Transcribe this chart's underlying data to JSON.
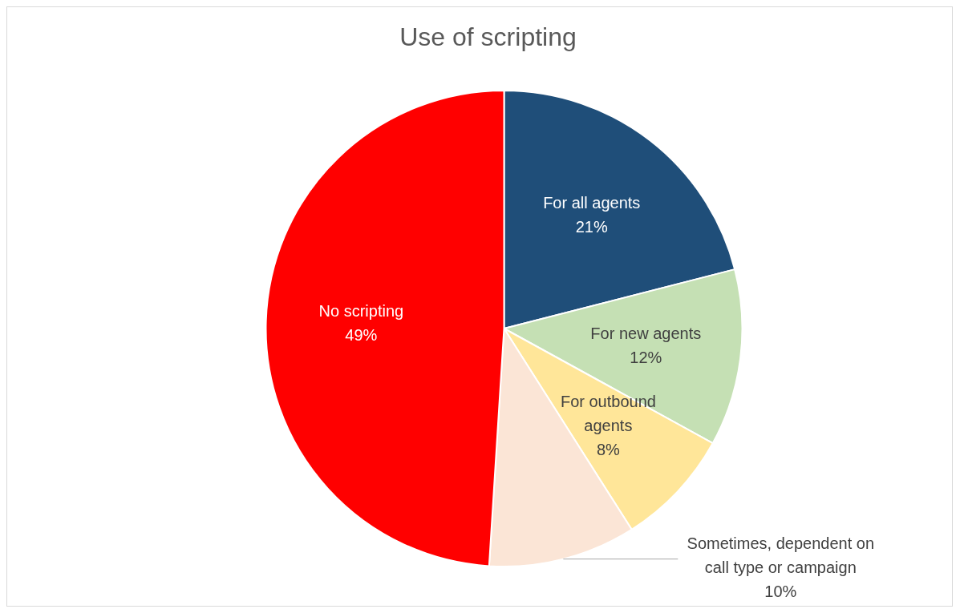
{
  "chart_data": {
    "type": "pie",
    "title": "Use of scripting",
    "categories": [
      "For all agents",
      "For new agents",
      "For outbound agents",
      "Sometimes, dependent on call type or campaign",
      "No scripting"
    ],
    "values": [
      21,
      12,
      8,
      10,
      49
    ],
    "value_labels": [
      "21%",
      "12%",
      "8%",
      "10%",
      "49%"
    ],
    "colors": [
      "#1f4e79",
      "#c5e0b4",
      "#ffe699",
      "#fbe5d6",
      "#ff0000"
    ],
    "legend": false
  }
}
